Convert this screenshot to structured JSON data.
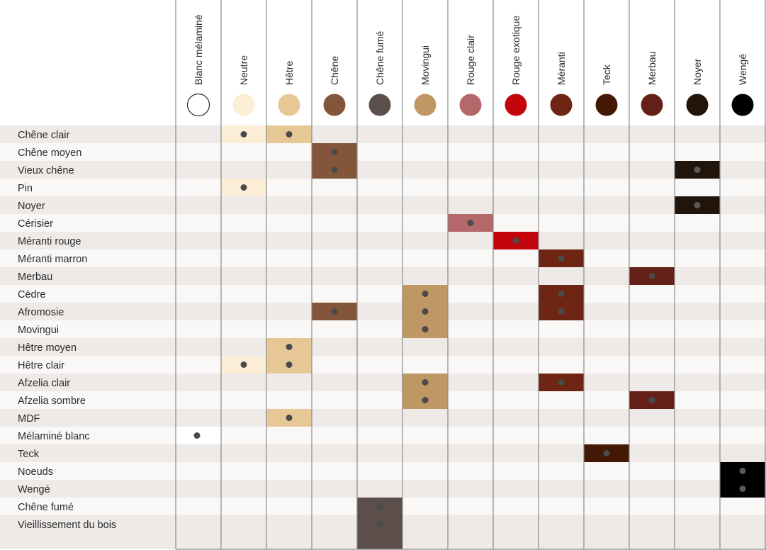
{
  "chart_data": {
    "type": "table",
    "title": "",
    "columns": [
      {
        "label": "Blanc mélaminé",
        "color": "#ffffff"
      },
      {
        "label": "Neutre",
        "color": "#fcedd6"
      },
      {
        "label": "Hêtre",
        "color": "#e7c796"
      },
      {
        "label": "Chêne",
        "color": "#83553a"
      },
      {
        "label": "Chêne fumé",
        "color": "#5b4e4b"
      },
      {
        "label": "Movingui",
        "color": "#bf9764"
      },
      {
        "label": "Rouge clair",
        "color": "#b4686a"
      },
      {
        "label": "Rouge exotique",
        "color": "#c2050b"
      },
      {
        "label": "Méranti",
        "color": "#6e2513"
      },
      {
        "label": "Teck",
        "color": "#431905"
      },
      {
        "label": "Merbau",
        "color": "#642016"
      },
      {
        "label": "Noyer",
        "color": "#21140a"
      },
      {
        "label": "Wengé",
        "color": "#000000"
      }
    ],
    "rows": [
      {
        "label": "Chêne clair",
        "cols": [
          1,
          2
        ]
      },
      {
        "label": "Chêne moyen",
        "cols": [
          3
        ]
      },
      {
        "label": "Vieux chêne",
        "cols": [
          3,
          11
        ]
      },
      {
        "label": "Pin",
        "cols": [
          1
        ]
      },
      {
        "label": "Noyer",
        "cols": [
          11
        ]
      },
      {
        "label": "Cérisier",
        "cols": [
          6
        ]
      },
      {
        "label": "Méranti rouge",
        "cols": [
          7
        ]
      },
      {
        "label": "Méranti marron",
        "cols": [
          8
        ]
      },
      {
        "label": "Merbau",
        "cols": [
          10
        ]
      },
      {
        "label": "Cèdre",
        "cols": [
          5,
          8
        ]
      },
      {
        "label": "Afromosie",
        "cols": [
          3,
          5,
          8
        ]
      },
      {
        "label": "Movingui",
        "cols": [
          5
        ]
      },
      {
        "label": "Hêtre moyen",
        "cols": [
          2
        ]
      },
      {
        "label": "Hêtre clair",
        "cols": [
          1,
          2
        ]
      },
      {
        "label": "Afzelia clair",
        "cols": [
          5,
          8
        ]
      },
      {
        "label": "Afzelia sombre",
        "cols": [
          5,
          10
        ]
      },
      {
        "label": "MDF",
        "cols": [
          2
        ]
      },
      {
        "label": "Mélaminé blanc",
        "cols": [
          0
        ]
      },
      {
        "label": "Teck",
        "cols": [
          9
        ]
      },
      {
        "label": "Noeuds",
        "cols": [
          12
        ]
      },
      {
        "label": "Wengé",
        "cols": [
          12
        ]
      },
      {
        "label": "Chêne fumé",
        "cols": [
          4
        ]
      },
      {
        "label": "Vieillissement du bois",
        "cols": [
          4
        ]
      }
    ],
    "stripe_colors": [
      "#edeae8",
      "#faf8f7"
    ],
    "marker_color": "#4a4a4a",
    "grid_color": "#8a8a8a"
  }
}
